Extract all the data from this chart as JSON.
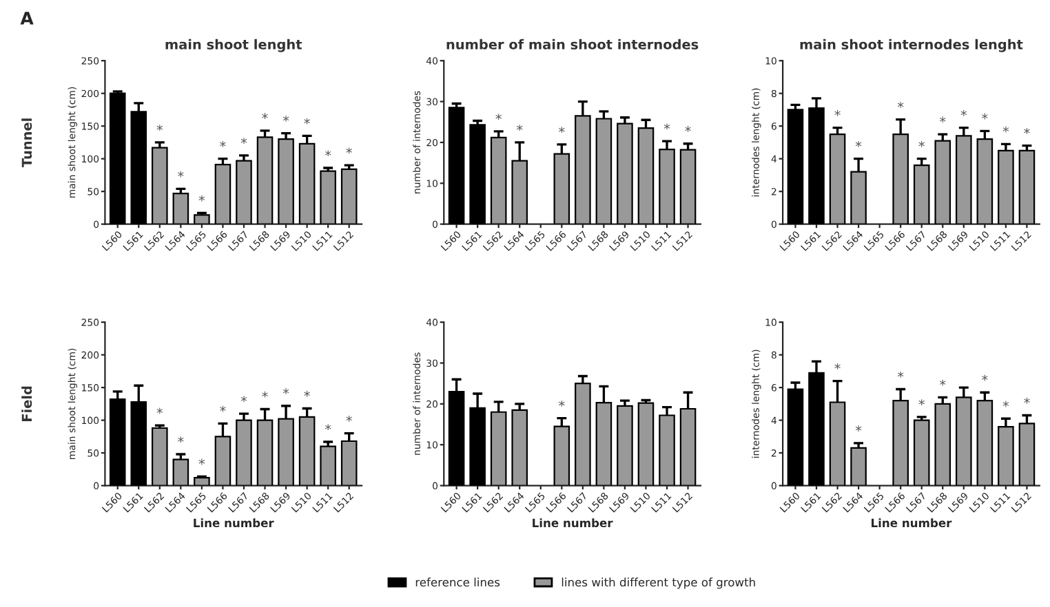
{
  "chart_data": [
    {
      "type": "bar",
      "title": "main shoot lenght",
      "ylabel": "main shoot lenght (cm)",
      "categories": [
        "L560",
        "L561",
        "L562",
        "L564",
        "L565",
        "L566",
        "L567",
        "L568",
        "L569",
        "L510",
        "L511",
        "L512"
      ],
      "series": [
        {
          "color": "#000000",
          "values": [
            200,
            172,
            null,
            null,
            null,
            null,
            null,
            null,
            null,
            null,
            null,
            null
          ],
          "errors": [
            3,
            13,
            null,
            null,
            null,
            null,
            null,
            null,
            null,
            null,
            null,
            null
          ]
        },
        {
          "color": "#999999",
          "values": [
            null,
            null,
            117,
            47,
            14,
            91,
            97,
            133,
            130,
            123,
            81,
            84
          ],
          "errors": [
            null,
            null,
            8,
            7,
            3,
            9,
            8,
            10,
            9,
            12,
            5,
            6
          ]
        }
      ],
      "ylim": [
        0,
        250
      ],
      "yticks": [
        0,
        50,
        100,
        150,
        200,
        250
      ],
      "grid": false,
      "annotations": [
        "A",
        "Tunnel",
        {
          "text": "*",
          "x": "L562",
          "y": 125
        },
        {
          "text": "*",
          "x": "L564",
          "y": 54
        },
        {
          "text": "*",
          "x": "L565",
          "y": 17
        },
        {
          "text": "*",
          "x": "L566",
          "y": 100
        },
        {
          "text": "*",
          "x": "L567",
          "y": 105
        },
        {
          "text": "*",
          "x": "L568",
          "y": 143
        },
        {
          "text": "*",
          "x": "L569",
          "y": 139
        },
        {
          "text": "*",
          "x": "L510",
          "y": 135
        },
        {
          "text": "*",
          "x": "L511",
          "y": 86
        },
        {
          "text": "*",
          "x": "L512",
          "y": 90
        }
      ]
    },
    {
      "type": "bar",
      "title": "number of main shoot internodes",
      "ylabel": "number of internodes",
      "categories": [
        "L560",
        "L561",
        "L562",
        "L564",
        "L565",
        "L566",
        "L567",
        "L568",
        "L569",
        "L510",
        "L511",
        "L512"
      ],
      "series": [
        {
          "color": "#000000",
          "values": [
            28.5,
            24.3,
            null,
            null,
            null,
            null,
            null,
            null,
            null,
            null,
            null,
            null
          ],
          "errors": [
            1,
            1,
            null,
            null,
            null,
            null,
            null,
            null,
            null,
            null,
            null,
            null
          ]
        },
        {
          "color": "#999999",
          "values": [
            null,
            null,
            21.2,
            15.5,
            null,
            17.2,
            26.5,
            25.8,
            24.6,
            23.5,
            18.3,
            18.2
          ],
          "errors": [
            null,
            null,
            1.5,
            4.5,
            null,
            2.3,
            3.5,
            1.8,
            1.5,
            2,
            2,
            1.5
          ]
        }
      ],
      "ylim": [
        0,
        40
      ],
      "yticks": [
        0,
        10,
        20,
        30,
        40
      ],
      "grid": false,
      "annotations": [
        {
          "text": "*",
          "x": "L562",
          "y": 22.7
        },
        {
          "text": "*",
          "x": "L564",
          "y": 20
        },
        {
          "text": "*",
          "x": "L566",
          "y": 19.5
        },
        {
          "text": "*",
          "x": "L511",
          "y": 20.3
        },
        {
          "text": "*",
          "x": "L512",
          "y": 19.7
        }
      ]
    },
    {
      "type": "bar",
      "title": "main shoot internodes lenght",
      "ylabel": "internodes lenght (cm)",
      "categories": [
        "L560",
        "L561",
        "L562",
        "L564",
        "L565",
        "L566",
        "L567",
        "L568",
        "L569",
        "L510",
        "L511",
        "L512"
      ],
      "series": [
        {
          "color": "#000000",
          "values": [
            7.0,
            7.1,
            null,
            null,
            null,
            null,
            null,
            null,
            null,
            null,
            null,
            null
          ],
          "errors": [
            0.3,
            0.6,
            null,
            null,
            null,
            null,
            null,
            null,
            null,
            null,
            null,
            null
          ]
        },
        {
          "color": "#999999",
          "values": [
            null,
            null,
            5.5,
            3.2,
            null,
            5.5,
            3.6,
            5.1,
            5.4,
            5.2,
            4.5,
            4.5
          ],
          "errors": [
            null,
            null,
            0.4,
            0.8,
            null,
            0.9,
            0.4,
            0.4,
            0.5,
            0.5,
            0.4,
            0.3
          ]
        }
      ],
      "ylim": [
        0,
        10
      ],
      "yticks": [
        0,
        2,
        4,
        6,
        8,
        10
      ],
      "grid": false,
      "annotations": [
        {
          "text": "*",
          "x": "L562",
          "y": 5.9
        },
        {
          "text": "*",
          "x": "L564",
          "y": 4.0
        },
        {
          "text": "*",
          "x": "L566",
          "y": 6.4
        },
        {
          "text": "*",
          "x": "L567",
          "y": 4.0
        },
        {
          "text": "*",
          "x": "L568",
          "y": 5.5
        },
        {
          "text": "*",
          "x": "L569",
          "y": 5.9
        },
        {
          "text": "*",
          "x": "L510",
          "y": 5.7
        },
        {
          "text": "*",
          "x": "L511",
          "y": 4.9
        },
        {
          "text": "*",
          "x": "L512",
          "y": 4.8
        }
      ]
    },
    {
      "type": "bar",
      "ylabel": "main shoot lenght (cm)",
      "xlabel": "Line number",
      "categories": [
        "L560",
        "L561",
        "L562",
        "L564",
        "L565",
        "L566",
        "L567",
        "L568",
        "L569",
        "L510",
        "L511",
        "L512"
      ],
      "series": [
        {
          "color": "#000000",
          "values": [
            132,
            128,
            null,
            null,
            null,
            null,
            null,
            null,
            null,
            null,
            null,
            null
          ],
          "errors": [
            12,
            25,
            null,
            null,
            null,
            null,
            null,
            null,
            null,
            null,
            null,
            null
          ]
        },
        {
          "color": "#999999",
          "values": [
            null,
            null,
            88,
            40,
            12,
            75,
            100,
            100,
            102,
            105,
            60,
            68
          ],
          "errors": [
            null,
            null,
            4,
            8,
            2,
            20,
            10,
            17,
            20,
            13,
            7,
            12
          ]
        }
      ],
      "ylim": [
        0,
        250
      ],
      "yticks": [
        0,
        50,
        100,
        150,
        200,
        250
      ],
      "grid": false,
      "annotations": [
        "Field",
        {
          "text": "*",
          "x": "L562",
          "y": 92
        },
        {
          "text": "*",
          "x": "L564",
          "y": 48
        },
        {
          "text": "*",
          "x": "L565",
          "y": 14
        },
        {
          "text": "*",
          "x": "L566",
          "y": 95
        },
        {
          "text": "*",
          "x": "L567",
          "y": 110
        },
        {
          "text": "*",
          "x": "L568",
          "y": 117
        },
        {
          "text": "*",
          "x": "L569",
          "y": 122
        },
        {
          "text": "*",
          "x": "L510",
          "y": 118
        },
        {
          "text": "*",
          "x": "L511",
          "y": 67
        },
        {
          "text": "*",
          "x": "L512",
          "y": 80
        }
      ]
    },
    {
      "type": "bar",
      "ylabel": "number of internodes",
      "xlabel": "Line number",
      "categories": [
        "L560",
        "L561",
        "L562",
        "L564",
        "L565",
        "L566",
        "L567",
        "L568",
        "L569",
        "L510",
        "L511",
        "L512"
      ],
      "series": [
        {
          "name": "reference lines",
          "color": "#000000",
          "values": [
            23,
            19,
            null,
            null,
            null,
            null,
            null,
            null,
            null,
            null,
            null,
            null
          ],
          "errors": [
            3,
            3.5,
            null,
            null,
            null,
            null,
            null,
            null,
            null,
            null,
            null,
            null
          ]
        },
        {
          "name": "lines with different type of growth",
          "color": "#999999",
          "values": [
            null,
            null,
            18,
            18.5,
            null,
            14.5,
            25,
            20.3,
            19.5,
            20.2,
            17.2,
            18.8
          ],
          "errors": [
            null,
            null,
            2.5,
            1.5,
            null,
            2,
            1.8,
            4,
            1.3,
            0.7,
            2,
            4
          ]
        }
      ],
      "ylim": [
        0,
        40
      ],
      "yticks": [
        0,
        10,
        20,
        30,
        40
      ],
      "grid": false,
      "legend": "bottom",
      "annotations": [
        {
          "text": "*",
          "x": "L566",
          "y": 16.5
        }
      ]
    },
    {
      "type": "bar",
      "ylabel": "internodes lenght (cm)",
      "xlabel": "Line number",
      "categories": [
        "L560",
        "L561",
        "L562",
        "L564",
        "L565",
        "L566",
        "L567",
        "L568",
        "L569",
        "L510",
        "L511",
        "L512"
      ],
      "series": [
        {
          "color": "#000000",
          "values": [
            5.9,
            6.9,
            null,
            null,
            null,
            null,
            null,
            null,
            null,
            null,
            null,
            null
          ],
          "errors": [
            0.4,
            0.7,
            null,
            null,
            null,
            null,
            null,
            null,
            null,
            null,
            null,
            null
          ]
        },
        {
          "color": "#999999",
          "values": [
            null,
            null,
            5.1,
            2.3,
            null,
            5.2,
            4.0,
            5.0,
            5.4,
            5.2,
            3.6,
            3.8
          ],
          "errors": [
            null,
            null,
            1.3,
            0.3,
            null,
            0.7,
            0.2,
            0.4,
            0.6,
            0.5,
            0.5,
            0.5
          ]
        }
      ],
      "ylim": [
        0,
        10
      ],
      "yticks": [
        0,
        2,
        4,
        6,
        8,
        10
      ],
      "grid": false,
      "annotations": [
        {
          "text": "*",
          "x": "L562",
          "y": 6.4
        },
        {
          "text": "*",
          "x": "L564",
          "y": 2.6
        },
        {
          "text": "*",
          "x": "L566",
          "y": 5.9
        },
        {
          "text": "*",
          "x": "L567",
          "y": 4.2
        },
        {
          "text": "*",
          "x": "L568",
          "y": 5.4
        },
        {
          "text": "*",
          "x": "L510",
          "y": 5.7
        },
        {
          "text": "*",
          "x": "L511",
          "y": 4.1
        },
        {
          "text": "*",
          "x": "L512",
          "y": 4.3
        }
      ]
    }
  ]
}
